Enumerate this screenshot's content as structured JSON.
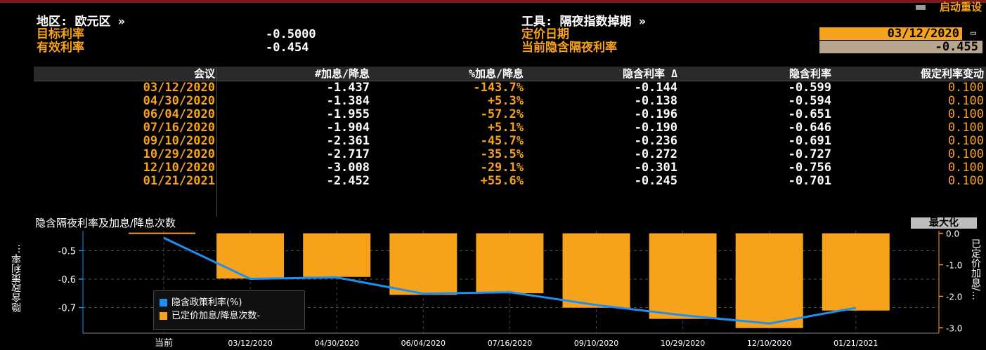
{
  "colors": {
    "accent": "#f7a21b",
    "line_series": "#1e8ff0",
    "background": "#000000"
  },
  "header": {
    "menu_label": "启动重设",
    "region_label": "地区: 欧元区 »",
    "instrument_label": "工具: 隔夜指数掉期 »",
    "target_rate_label": "目标利率",
    "target_rate_value": "-0.5000",
    "effective_rate_label": "有效利率",
    "effective_rate_value": "-0.454",
    "pricing_date_label": "定价日期",
    "pricing_date_value": "03/12/2020",
    "implied_overnight_label": "当前隐含隔夜利率",
    "implied_overnight_value": "-0.455"
  },
  "table": {
    "columns": [
      "会议",
      "#加息/降息",
      "%加息/降息",
      "隐含利率 Δ",
      "隐含利率",
      "假定利率变动"
    ],
    "rows": [
      [
        "03/12/2020",
        "-1.437",
        "-143.7%",
        "-0.144",
        "-0.599",
        "0.100"
      ],
      [
        "04/30/2020",
        "-1.384",
        "+5.3%",
        "-0.138",
        "-0.594",
        "0.100"
      ],
      [
        "06/04/2020",
        "-1.955",
        "-57.2%",
        "-0.196",
        "-0.651",
        "0.100"
      ],
      [
        "07/16/2020",
        "-1.904",
        "+5.1%",
        "-0.190",
        "-0.646",
        "0.100"
      ],
      [
        "09/10/2020",
        "-2.361",
        "-45.7%",
        "-0.236",
        "-0.691",
        "0.100"
      ],
      [
        "10/29/2020",
        "-2.717",
        "-35.5%",
        "-0.272",
        "-0.727",
        "0.100"
      ],
      [
        "12/10/2020",
        "-3.008",
        "-29.1%",
        "-0.301",
        "-0.756",
        "0.100"
      ],
      [
        "01/21/2021",
        "-2.452",
        "+55.6%",
        "-0.245",
        "-0.701",
        "0.100"
      ]
    ]
  },
  "chart": {
    "title": "隐含隔夜利率及加息/降息次数",
    "maximize_label": "最大化",
    "left_axis_label": "隐含政策利率...",
    "right_axis_label": "已定价加息/...",
    "legend": [
      "隐含政策利率(%)",
      "已定价加息/降息次数-"
    ]
  },
  "chart_data": {
    "type": "bar",
    "categories": [
      "当前",
      "03/12/2020",
      "04/30/2020",
      "06/04/2020",
      "07/16/2020",
      "09/10/2020",
      "10/29/2020",
      "12/10/2020",
      "01/21/2021"
    ],
    "series": [
      {
        "name": "隐含政策利率(%)",
        "type": "line",
        "axis": "left",
        "values": [
          -0.455,
          -0.599,
          -0.594,
          -0.651,
          -0.646,
          -0.691,
          -0.727,
          -0.756,
          -0.701
        ]
      },
      {
        "name": "已定价加息/降息次数-",
        "type": "bar",
        "axis": "right",
        "values": [
          null,
          -1.437,
          -1.384,
          -1.955,
          -1.904,
          -2.361,
          -2.717,
          -3.008,
          -2.452
        ]
      }
    ],
    "left_ticks": [
      "-0.5",
      "-0.6",
      "-0.7"
    ],
    "right_ticks": [
      "0.0",
      "-1.0",
      "-2.0",
      "-3.0"
    ],
    "left_ylim": [
      -0.79,
      -0.43
    ],
    "right_ylim": [
      -3.17,
      0.08
    ],
    "grid": true
  }
}
